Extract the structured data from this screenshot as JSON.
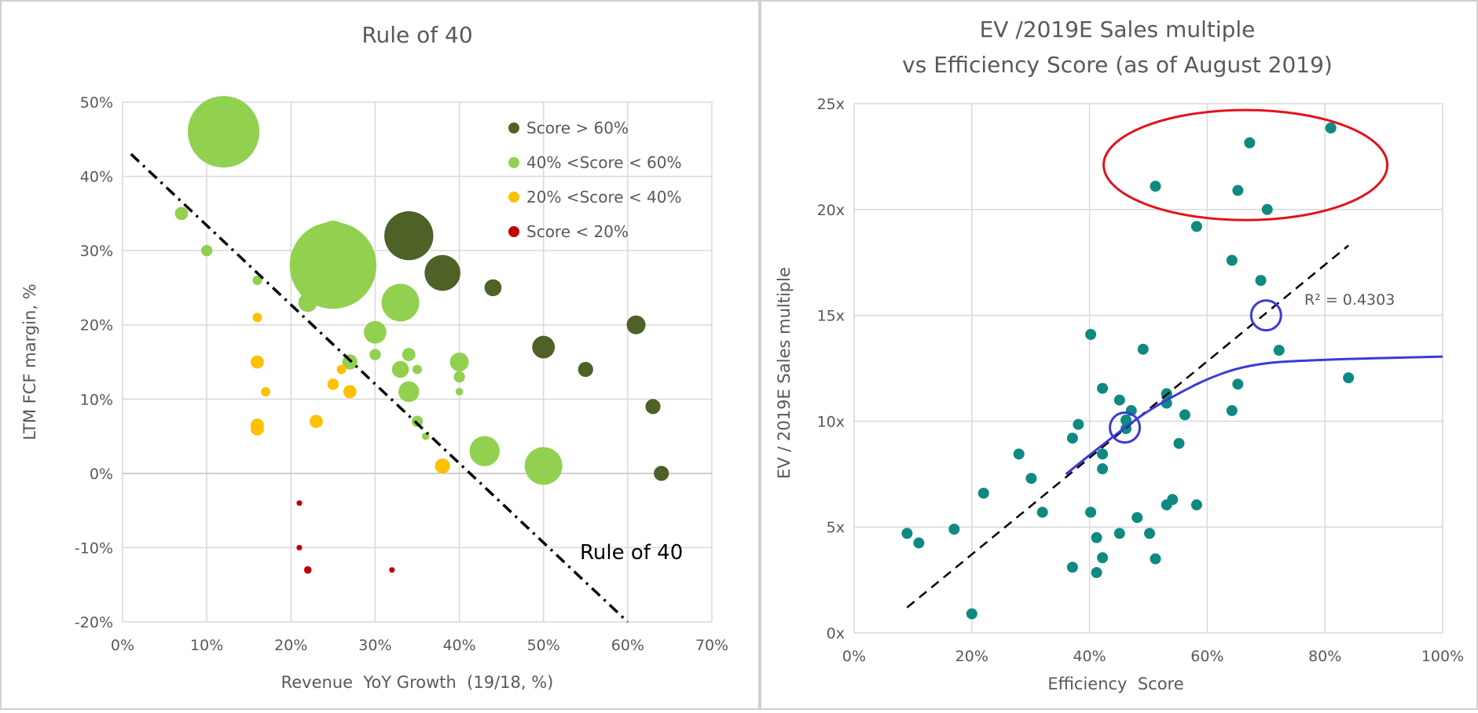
{
  "chart_data": [
    {
      "type": "scatter",
      "title": "Rule of 40",
      "xlabel": "Revenue  YoY Growth  (19/18, %)",
      "ylabel": "LTM FCF margin, %",
      "xlim": [
        0,
        70
      ],
      "ylim": [
        -20,
        50
      ],
      "xticks": [
        0,
        10,
        20,
        30,
        40,
        50,
        60,
        70
      ],
      "yticks": [
        -20,
        -10,
        0,
        10,
        20,
        30,
        40,
        50
      ],
      "xtick_labels": [
        "0%",
        "10%",
        "20%",
        "30%",
        "40%",
        "50%",
        "60%",
        "70%"
      ],
      "ytick_labels": [
        "-20%",
        "-10%",
        "0%",
        "10%",
        "20%",
        "30%",
        "40%",
        "50%"
      ],
      "grid": true,
      "legend_position": "top-right",
      "series": [
        {
          "name": "Score > 60%",
          "color": "#4e6127",
          "points": [
            {
              "x": 34,
              "y": 32,
              "size": 26
            },
            {
              "x": 38,
              "y": 27,
              "size": 19
            },
            {
              "x": 44,
              "y": 25,
              "size": 9
            },
            {
              "x": 50,
              "y": 17,
              "size": 12
            },
            {
              "x": 55,
              "y": 14,
              "size": 8
            },
            {
              "x": 61,
              "y": 20,
              "size": 10
            },
            {
              "x": 63,
              "y": 9,
              "size": 8
            },
            {
              "x": 64,
              "y": 0,
              "size": 8
            }
          ]
        },
        {
          "name": "40% <Score < 60%",
          "color": "#92d050",
          "points": [
            {
              "x": 12,
              "y": 46,
              "size": 38
            },
            {
              "x": 7,
              "y": 35,
              "size": 7
            },
            {
              "x": 10,
              "y": 30,
              "size": 6
            },
            {
              "x": 16,
              "y": 26,
              "size": 5
            },
            {
              "x": 22,
              "y": 23,
              "size": 10
            },
            {
              "x": 25,
              "y": 32,
              "size": 16
            },
            {
              "x": 25,
              "y": 28,
              "size": 46
            },
            {
              "x": 27,
              "y": 15,
              "size": 8
            },
            {
              "x": 30,
              "y": 19,
              "size": 12
            },
            {
              "x": 30,
              "y": 16,
              "size": 6
            },
            {
              "x": 33,
              "y": 23,
              "size": 20
            },
            {
              "x": 33,
              "y": 14,
              "size": 9
            },
            {
              "x": 34,
              "y": 16,
              "size": 7
            },
            {
              "x": 34,
              "y": 11,
              "size": 11
            },
            {
              "x": 35,
              "y": 14,
              "size": 5
            },
            {
              "x": 35,
              "y": 7,
              "size": 6
            },
            {
              "x": 36,
              "y": 5,
              "size": 4
            },
            {
              "x": 40,
              "y": 15,
              "size": 10
            },
            {
              "x": 40,
              "y": 13,
              "size": 6
            },
            {
              "x": 40,
              "y": 11,
              "size": 4
            },
            {
              "x": 43,
              "y": 3,
              "size": 16
            },
            {
              "x": 50,
              "y": 1,
              "size": 20
            }
          ]
        },
        {
          "name": "20% <Score < 40%",
          "color": "#ffc000",
          "points": [
            {
              "x": 16,
              "y": 21,
              "size": 5
            },
            {
              "x": 16,
              "y": 15,
              "size": 7
            },
            {
              "x": 17,
              "y": 11,
              "size": 5
            },
            {
              "x": 16,
              "y": 6.5,
              "size": 7
            },
            {
              "x": 16,
              "y": 6,
              "size": 7
            },
            {
              "x": 23,
              "y": 7,
              "size": 7
            },
            {
              "x": 25,
              "y": 12,
              "size": 6
            },
            {
              "x": 26,
              "y": 14,
              "size": 5
            },
            {
              "x": 27,
              "y": 11,
              "size": 7
            },
            {
              "x": 38,
              "y": 1,
              "size": 8
            }
          ]
        },
        {
          "name": "Score < 20%",
          "color": "#c00000",
          "points": [
            {
              "x": 21,
              "y": -4,
              "size": 3
            },
            {
              "x": 21,
              "y": -10,
              "size": 3
            },
            {
              "x": 22,
              "y": -13,
              "size": 4
            },
            {
              "x": 32,
              "y": -13,
              "size": 3
            }
          ]
        }
      ],
      "reference_line": {
        "label": "Rule of 40",
        "from": [
          1,
          43
        ],
        "to": [
          60,
          -20
        ],
        "color": "#000000"
      }
    },
    {
      "type": "scatter",
      "title": [
        "EV /2019E Sales multiple",
        "vs Efficiency Score (as of August 2019)"
      ],
      "xlabel": "Efficiency  Score",
      "ylabel": "EV / 2019E Sales multiple",
      "xlim": [
        0,
        100
      ],
      "ylim": [
        0,
        25
      ],
      "xticks": [
        0,
        20,
        40,
        60,
        80,
        100
      ],
      "yticks": [
        0,
        5,
        10,
        15,
        20,
        25
      ],
      "xtick_labels": [
        "0%",
        "20%",
        "40%",
        "60%",
        "80%",
        "100%"
      ],
      "ytick_labels": [
        "0x",
        "5x",
        "10x",
        "15x",
        "20x",
        "25x"
      ],
      "grid": true,
      "point_color": "#0e8a80",
      "points": [
        [
          9,
          4.7
        ],
        [
          11,
          4.25
        ],
        [
          17,
          4.9
        ],
        [
          22,
          6.6
        ],
        [
          20,
          0.9
        ],
        [
          28,
          8.45
        ],
        [
          30.1,
          7.3
        ],
        [
          32,
          5.7
        ],
        [
          37.1,
          9.2
        ],
        [
          38.1,
          9.85
        ],
        [
          37.1,
          3.1
        ],
        [
          40.2,
          14.1
        ],
        [
          40.2,
          5.7
        ],
        [
          41.2,
          4.5
        ],
        [
          41.2,
          2.85
        ],
        [
          42.2,
          11.55
        ],
        [
          42.2,
          8.45
        ],
        [
          42.2,
          7.75
        ],
        [
          42.2,
          3.55
        ],
        [
          45.1,
          11.0
        ],
        [
          45.1,
          4.7
        ],
        [
          46.2,
          10.05
        ],
        [
          46.2,
          9.65
        ],
        [
          47.1,
          10.5
        ],
        [
          48.1,
          5.45
        ],
        [
          49.1,
          13.4
        ],
        [
          50.2,
          4.7
        ],
        [
          51.2,
          3.5
        ],
        [
          51.2,
          21.1
        ],
        [
          53.1,
          11.3
        ],
        [
          53.1,
          10.85
        ],
        [
          53.1,
          6.05
        ],
        [
          54.1,
          6.3
        ],
        [
          55.2,
          8.95
        ],
        [
          56.2,
          10.3
        ],
        [
          58.2,
          19.2
        ],
        [
          58.2,
          6.05
        ],
        [
          64.2,
          17.6
        ],
        [
          64.2,
          10.5
        ],
        [
          65.2,
          20.9
        ],
        [
          65.2,
          11.75
        ],
        [
          67.2,
          23.15
        ],
        [
          69.1,
          16.65
        ],
        [
          70.2,
          20.0
        ],
        [
          72.2,
          13.35
        ],
        [
          81,
          23.85
        ],
        [
          84,
          12.05
        ]
      ],
      "trendline": {
        "type": "linear",
        "from": [
          9,
          1.2
        ],
        "to": [
          84,
          18.3
        ],
        "r2_label": "R² = 0.4303",
        "color": "#000000"
      },
      "curve": {
        "color": "#3b3bd6",
        "points": [
          [
            36,
            7.5
          ],
          [
            40,
            8.4
          ],
          [
            46,
            9.7
          ],
          [
            50,
            10.5
          ],
          [
            55,
            11.3
          ],
          [
            60,
            12.0
          ],
          [
            65,
            12.5
          ],
          [
            70,
            12.75
          ],
          [
            75,
            12.85
          ],
          [
            85,
            12.95
          ],
          [
            100,
            13.05
          ]
        ]
      },
      "highlight_circles": [
        {
          "x": 46,
          "y": 9.7,
          "color": "#3b3bd6"
        },
        {
          "x": 70,
          "y": 15,
          "color": "#3b3bd6"
        }
      ],
      "highlight_ellipse": {
        "cx": 66.5,
        "cy": 22.1,
        "rx": 24.1,
        "ry": 2.6,
        "color": "#e3121b"
      }
    }
  ]
}
